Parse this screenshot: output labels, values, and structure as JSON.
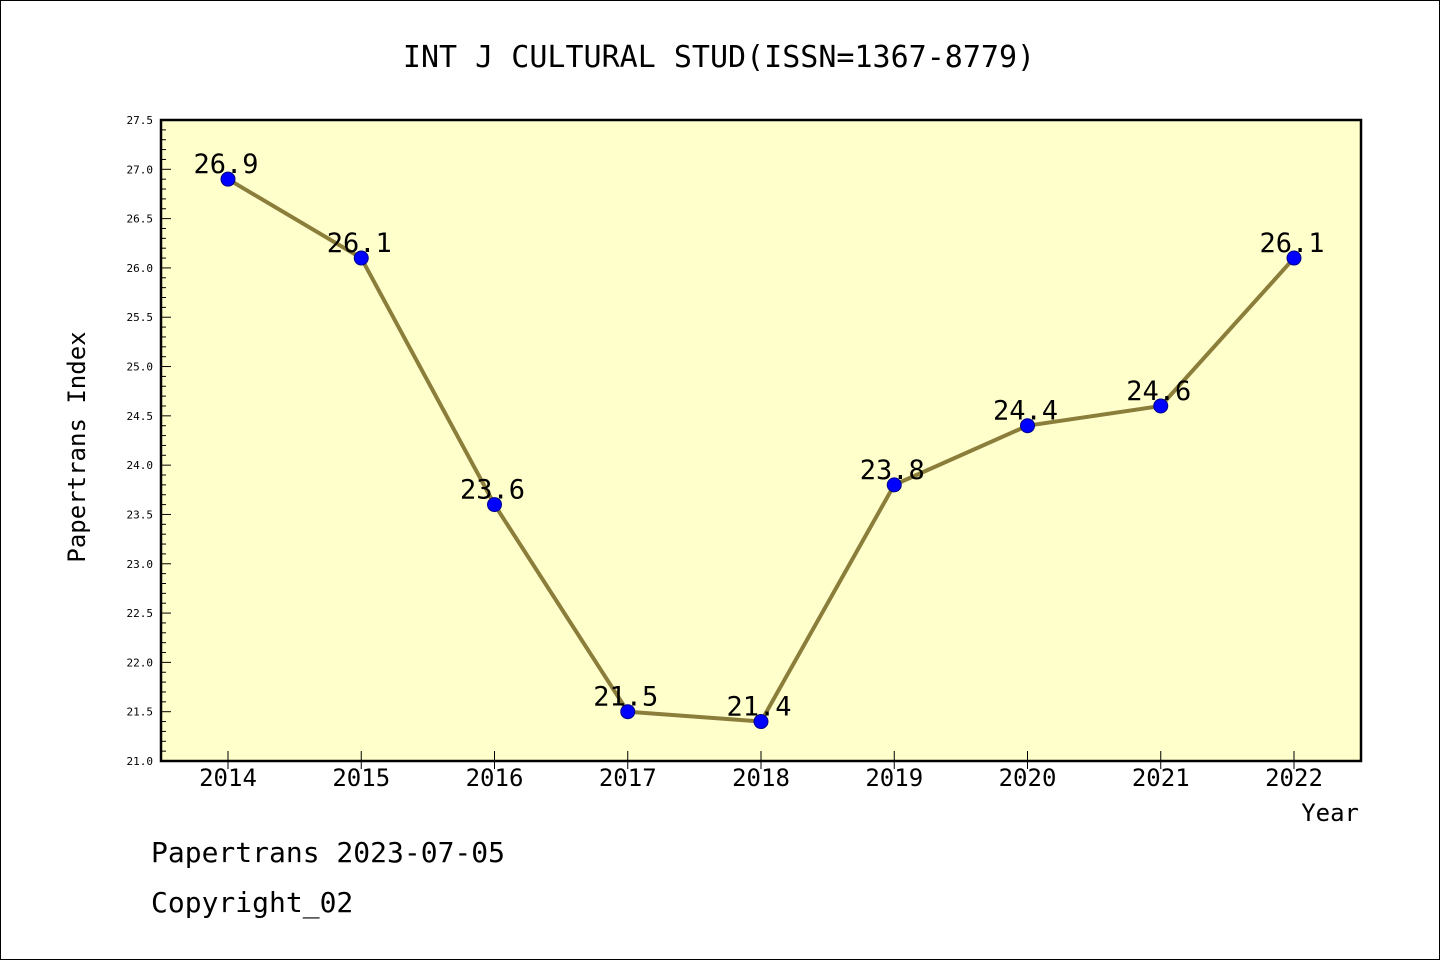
{
  "chart_data": {
    "type": "line",
    "title": "INT J CULTURAL STUD(ISSN=1367-8779)",
    "xlabel": "Year",
    "ylabel": "Papertrans Index",
    "categories": [
      "2014",
      "2015",
      "2016",
      "2017",
      "2018",
      "2019",
      "2020",
      "2021",
      "2022"
    ],
    "series": [
      {
        "values": [
          26.9,
          26.1,
          23.6,
          21.5,
          21.4,
          23.8,
          24.4,
          24.6,
          26.1
        ],
        "labels": [
          "26.9",
          "26.1",
          "23.6",
          "21.5",
          "21.4",
          "23.8",
          "24.4",
          "24.6",
          "26.1"
        ]
      }
    ],
    "ylim": [
      21.0,
      27.5
    ],
    "yticks": [
      "21.0",
      "21.5",
      "22.0",
      "22.5",
      "23.0",
      "23.5",
      "24.0",
      "24.5",
      "25.0",
      "25.5",
      "26.0",
      "26.5",
      "27.0",
      "27.5"
    ],
    "grid": false,
    "legend": "none",
    "colors": {
      "plot_background": "#ffffcc",
      "line": "#8b7d3a",
      "marker": "#0000ff",
      "marker_edge": "#00008b",
      "axis": "#000000"
    }
  },
  "footer": {
    "date_line": "Papertrans 2023-07-05",
    "copyright_line": "Copyright_02"
  }
}
